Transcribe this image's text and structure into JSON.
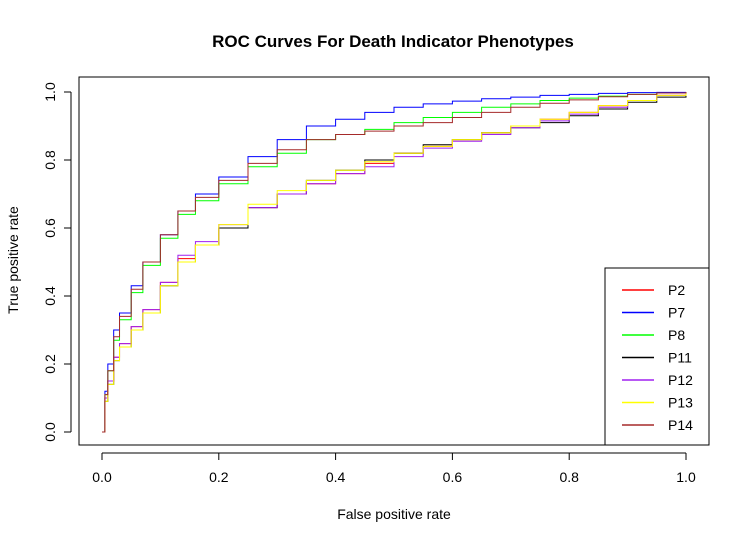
{
  "chart_data": {
    "type": "line",
    "title": "ROC Curves For Death Indicator Phenotypes",
    "xlabel": "False positive rate",
    "ylabel": "True positive rate",
    "xlim": [
      0,
      1
    ],
    "ylim": [
      0,
      1
    ],
    "xticks": [
      "0.0",
      "0.2",
      "0.4",
      "0.6",
      "0.8",
      "1.0"
    ],
    "yticks": [
      "0.0",
      "0.2",
      "0.4",
      "0.6",
      "0.8",
      "1.0"
    ],
    "legend_position": "bottom-right",
    "series": [
      {
        "name": "P2",
        "color": "#ff0000",
        "x": [
          0,
          0.005,
          0.01,
          0.02,
          0.03,
          0.05,
          0.07,
          0.1,
          0.13,
          0.16,
          0.2,
          0.25,
          0.3,
          0.35,
          0.4,
          0.45,
          0.5,
          0.55,
          0.6,
          0.65,
          0.7,
          0.75,
          0.8,
          0.85,
          0.9,
          0.95,
          1.0
        ],
        "y": [
          0,
          0.1,
          0.15,
          0.22,
          0.26,
          0.31,
          0.36,
          0.44,
          0.51,
          0.55,
          0.6,
          0.66,
          0.7,
          0.73,
          0.76,
          0.79,
          0.82,
          0.84,
          0.86,
          0.88,
          0.9,
          0.92,
          0.94,
          0.96,
          0.975,
          0.99,
          1.0
        ]
      },
      {
        "name": "P7",
        "color": "#0000ff",
        "x": [
          0,
          0.005,
          0.01,
          0.02,
          0.03,
          0.05,
          0.07,
          0.1,
          0.13,
          0.16,
          0.2,
          0.25,
          0.3,
          0.35,
          0.4,
          0.45,
          0.5,
          0.55,
          0.6,
          0.65,
          0.7,
          0.75,
          0.8,
          0.85,
          0.9,
          0.95,
          1.0
        ],
        "y": [
          0,
          0.12,
          0.2,
          0.3,
          0.35,
          0.43,
          0.5,
          0.58,
          0.65,
          0.7,
          0.75,
          0.81,
          0.86,
          0.9,
          0.92,
          0.94,
          0.955,
          0.965,
          0.973,
          0.98,
          0.985,
          0.99,
          0.993,
          0.996,
          0.998,
          0.999,
          1.0
        ]
      },
      {
        "name": "P8",
        "color": "#00ff00",
        "x": [
          0,
          0.005,
          0.01,
          0.02,
          0.03,
          0.05,
          0.07,
          0.1,
          0.13,
          0.16,
          0.2,
          0.25,
          0.3,
          0.35,
          0.4,
          0.45,
          0.5,
          0.55,
          0.6,
          0.65,
          0.7,
          0.75,
          0.8,
          0.85,
          0.9,
          0.95,
          1.0
        ],
        "y": [
          0,
          0.11,
          0.18,
          0.27,
          0.33,
          0.41,
          0.49,
          0.57,
          0.64,
          0.68,
          0.73,
          0.78,
          0.82,
          0.86,
          0.875,
          0.89,
          0.91,
          0.925,
          0.94,
          0.955,
          0.965,
          0.975,
          0.982,
          0.988,
          0.993,
          0.997,
          1.0
        ]
      },
      {
        "name": "P11",
        "color": "#000000",
        "x": [
          0,
          0.005,
          0.01,
          0.02,
          0.03,
          0.05,
          0.07,
          0.1,
          0.13,
          0.16,
          0.2,
          0.25,
          0.3,
          0.35,
          0.4,
          0.45,
          0.5,
          0.55,
          0.6,
          0.65,
          0.7,
          0.75,
          0.8,
          0.85,
          0.9,
          0.95,
          1.0
        ],
        "y": [
          0,
          0.09,
          0.14,
          0.21,
          0.25,
          0.3,
          0.35,
          0.43,
          0.5,
          0.55,
          0.6,
          0.66,
          0.7,
          0.74,
          0.77,
          0.8,
          0.82,
          0.845,
          0.86,
          0.88,
          0.895,
          0.91,
          0.93,
          0.95,
          0.97,
          0.985,
          1.0
        ]
      },
      {
        "name": "P12",
        "color": "#a020f0",
        "x": [
          0,
          0.005,
          0.01,
          0.02,
          0.03,
          0.05,
          0.07,
          0.1,
          0.13,
          0.16,
          0.2,
          0.25,
          0.3,
          0.35,
          0.4,
          0.45,
          0.5,
          0.55,
          0.6,
          0.65,
          0.7,
          0.75,
          0.8,
          0.85,
          0.9,
          0.95,
          1.0
        ],
        "y": [
          0,
          0.1,
          0.15,
          0.22,
          0.26,
          0.31,
          0.36,
          0.44,
          0.52,
          0.56,
          0.61,
          0.66,
          0.7,
          0.73,
          0.76,
          0.78,
          0.81,
          0.835,
          0.855,
          0.875,
          0.895,
          0.915,
          0.935,
          0.955,
          0.975,
          0.99,
          1.0
        ]
      },
      {
        "name": "P13",
        "color": "#ffff00",
        "x": [
          0,
          0.005,
          0.01,
          0.02,
          0.03,
          0.05,
          0.07,
          0.1,
          0.13,
          0.16,
          0.2,
          0.25,
          0.3,
          0.35,
          0.4,
          0.45,
          0.5,
          0.55,
          0.6,
          0.65,
          0.7,
          0.75,
          0.8,
          0.85,
          0.9,
          0.95,
          1.0
        ],
        "y": [
          0,
          0.09,
          0.14,
          0.21,
          0.25,
          0.3,
          0.35,
          0.43,
          0.5,
          0.55,
          0.61,
          0.67,
          0.71,
          0.74,
          0.77,
          0.795,
          0.82,
          0.84,
          0.86,
          0.88,
          0.9,
          0.92,
          0.94,
          0.96,
          0.975,
          0.99,
          1.0
        ]
      },
      {
        "name": "P14",
        "color": "#a52a2a",
        "x": [
          0,
          0.005,
          0.01,
          0.02,
          0.03,
          0.05,
          0.07,
          0.1,
          0.13,
          0.16,
          0.2,
          0.25,
          0.3,
          0.35,
          0.4,
          0.45,
          0.5,
          0.55,
          0.6,
          0.65,
          0.7,
          0.75,
          0.8,
          0.85,
          0.9,
          0.95,
          1.0
        ],
        "y": [
          0,
          0.11,
          0.18,
          0.28,
          0.34,
          0.42,
          0.5,
          0.58,
          0.65,
          0.69,
          0.74,
          0.79,
          0.83,
          0.86,
          0.875,
          0.885,
          0.9,
          0.91,
          0.925,
          0.94,
          0.955,
          0.967,
          0.977,
          0.986,
          0.993,
          0.997,
          1.0
        ]
      }
    ]
  }
}
